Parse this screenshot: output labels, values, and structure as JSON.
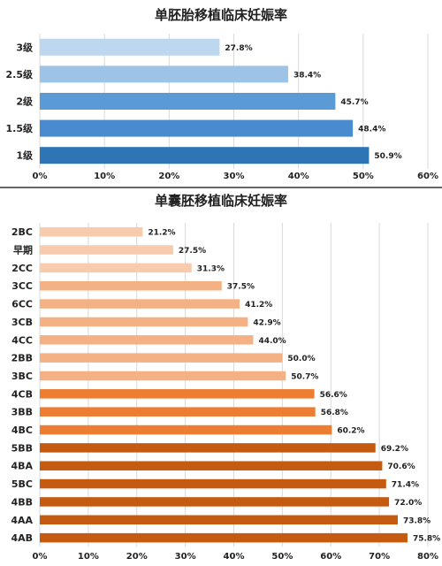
{
  "chart_data": [
    {
      "type": "bar",
      "orientation": "horizontal",
      "title": "单胚胎移植临床妊娠率",
      "categories": [
        "3级",
        "2.5级",
        "2级",
        "1.5级",
        "1级"
      ],
      "values": [
        27.8,
        38.4,
        45.7,
        48.4,
        50.9
      ],
      "value_labels": [
        "27.8%",
        "38.4%",
        "45.7%",
        "48.4%",
        "50.9%"
      ],
      "colors": [
        "#bdd7ee",
        "#9dc3e6",
        "#5b9bd5",
        "#4a8bcf",
        "#2e75b6"
      ],
      "xlim": [
        0,
        60
      ],
      "xticks": [
        0,
        10,
        20,
        30,
        40,
        50,
        60
      ],
      "xtick_labels": [
        "0%",
        "10%",
        "20%",
        "30%",
        "40%",
        "50%",
        "60%"
      ],
      "grid": true
    },
    {
      "type": "bar",
      "orientation": "horizontal",
      "title": "单囊胚移植临床妊娠率",
      "categories": [
        "2BC",
        "早期",
        "2CC",
        "3CC",
        "6CC",
        "3CB",
        "4CC",
        "2BB",
        "3BC",
        "4CB",
        "3BB",
        "4BC",
        "5BB",
        "4BA",
        "5BC",
        "4BB",
        "4AA",
        "4AB"
      ],
      "values": [
        21.2,
        27.5,
        31.3,
        37.5,
        41.2,
        42.9,
        44.0,
        50.0,
        50.7,
        56.6,
        56.8,
        60.2,
        69.2,
        70.6,
        71.4,
        72.0,
        73.8,
        75.8
      ],
      "value_labels": [
        "21.2%",
        "27.5%",
        "31.3%",
        "37.5%",
        "41.2%",
        "42.9%",
        "44.0%",
        "50.0%",
        "50.7%",
        "56.6%",
        "56.8%",
        "60.2%",
        "69.2%",
        "70.6%",
        "71.4%",
        "72.0%",
        "73.8%",
        "75.8%"
      ],
      "colors": [
        "#f8cbad",
        "#f8cbad",
        "#f8cbad",
        "#f4b183",
        "#f4b183",
        "#f4b183",
        "#f4b183",
        "#f4b183",
        "#f4b183",
        "#ed7d31",
        "#ed7d31",
        "#ed7d31",
        "#c55a11",
        "#c55a11",
        "#c55a11",
        "#c55a11",
        "#c55a11",
        "#c55a11"
      ],
      "xlim": [
        0,
        80
      ],
      "xticks": [
        0,
        10,
        20,
        30,
        40,
        50,
        60,
        70,
        80
      ],
      "xtick_labels": [
        "0%",
        "10%",
        "20%",
        "30%",
        "40%",
        "50%",
        "60%",
        "70%",
        "80%"
      ],
      "grid": true
    }
  ]
}
